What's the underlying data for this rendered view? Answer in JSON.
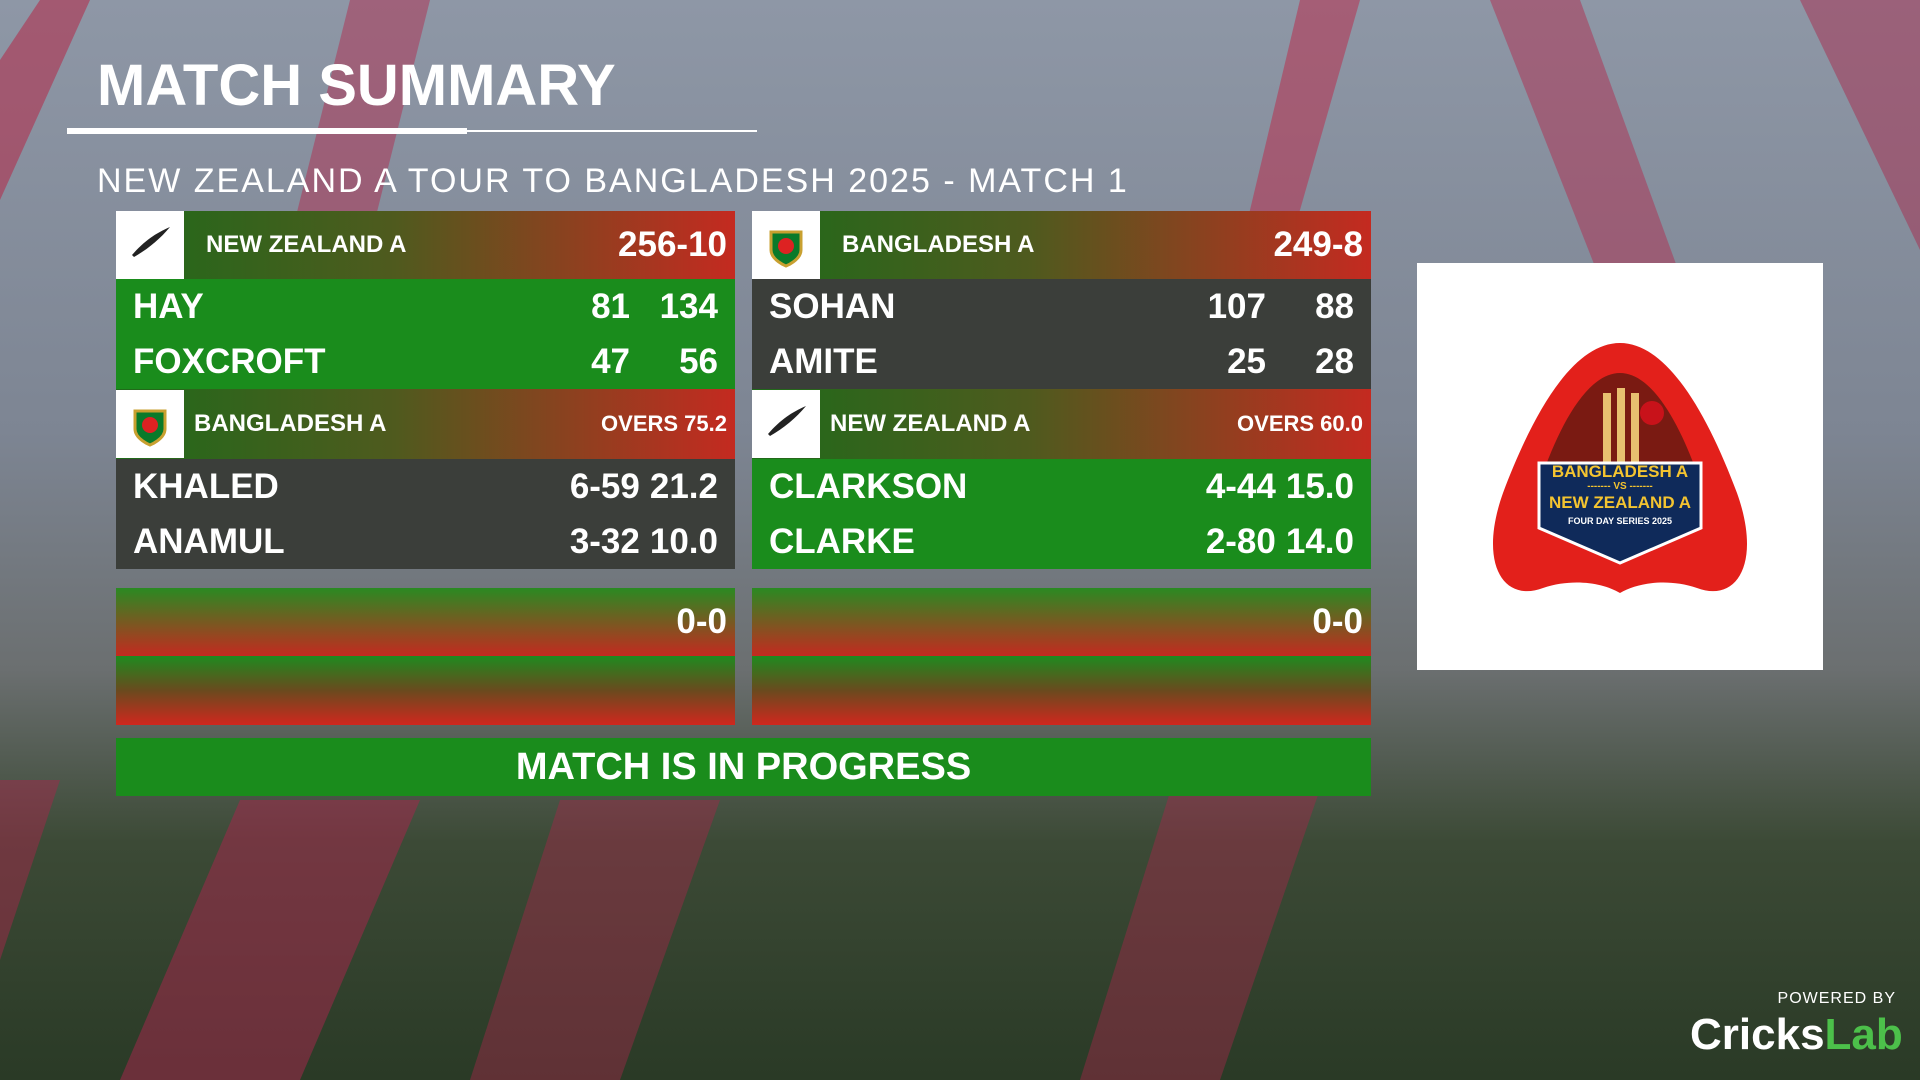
{
  "header": {
    "title": "MATCH SUMMARY",
    "subtitle": "NEW ZEALAND A TOUR TO BANGLADESH 2025 - MATCH 1"
  },
  "innings": [
    {
      "team": "NEW ZEALAND A",
      "score": "256-10",
      "batters": [
        {
          "name": "HAY",
          "runs": "81",
          "balls": "134"
        },
        {
          "name": "FOXCROFT",
          "runs": "47",
          "balls": "56"
        }
      ],
      "bowling_team": "BANGLADESH A",
      "overs": "OVERS 75.2",
      "bowlers": [
        {
          "name": "KHALED",
          "figures": "6-59",
          "overs": "21.2"
        },
        {
          "name": "ANAMUL",
          "figures": "3-32",
          "overs": "10.0"
        }
      ]
    },
    {
      "team": "BANGLADESH A",
      "score": "249-8",
      "batters": [
        {
          "name": "SOHAN",
          "runs": "107",
          "balls": "88"
        },
        {
          "name": "AMITE",
          "runs": "25",
          "balls": "28"
        }
      ],
      "bowling_team": "NEW ZEALAND A",
      "overs": "OVERS 60.0",
      "bowlers": [
        {
          "name": "CLARKSON",
          "figures": "4-44",
          "overs": "15.0"
        },
        {
          "name": "CLARKE",
          "figures": "2-80",
          "overs": "14.0"
        }
      ]
    }
  ],
  "next_innings": [
    {
      "score": "0-0"
    },
    {
      "score": "0-0"
    }
  ],
  "status": "MATCH IS IN PROGRESS",
  "logo": {
    "team_1": "BANGLADESH A",
    "vs": "------- VS -------",
    "team_2": "NEW ZEALAND A",
    "series": "FOUR DAY SERIES 2025"
  },
  "footer": {
    "powered": "POWERED BY",
    "brand_1": "Cricks",
    "brand_2": "Lab"
  }
}
